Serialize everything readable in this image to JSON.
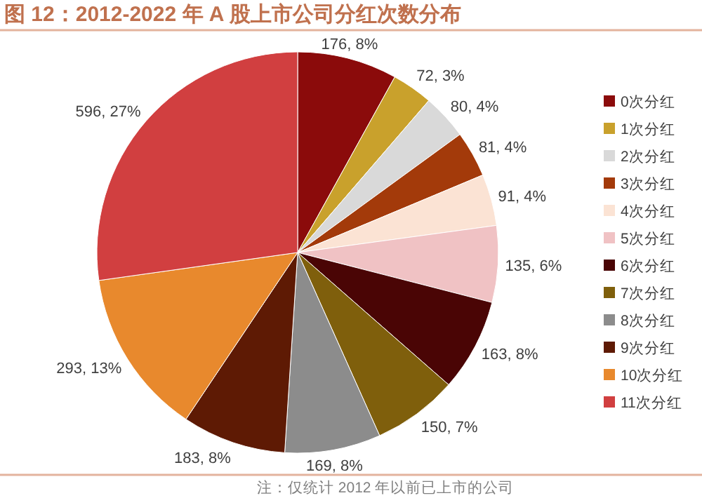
{
  "chart_data": {
    "type": "pie",
    "title": "图 12：2012-2022 年 A 股上市公司分红次数分布",
    "categories": [
      "0次分红",
      "1次分红",
      "2次分红",
      "3次分红",
      "4次分红",
      "5次分红",
      "6次分红",
      "7次分红",
      "8次分红",
      "9次分红",
      "10次分红",
      "11次分红"
    ],
    "values": [
      176,
      72,
      80,
      81,
      91,
      135,
      163,
      150,
      169,
      183,
      293,
      596
    ],
    "colors": [
      "#8b0b0b",
      "#c9a12c",
      "#d9d9d9",
      "#a33a0a",
      "#fbe3d4",
      "#f0c2c4",
      "#4a0505",
      "#7f5f0c",
      "#8c8c8c",
      "#5e1a04",
      "#e8892d",
      "#d13f40"
    ],
    "value_labels": [
      "176, 8%",
      "72, 3%",
      "80, 4%",
      "81, 4%",
      "91, 4%",
      "135, 6%",
      "163, 8%",
      "150, 7%",
      "169, 8%",
      "183, 8%",
      "293, 13%",
      "596, 27%"
    ],
    "legend": "right",
    "annotations": [
      "注：仅统计 2012 年以前已上市的公司"
    ]
  }
}
